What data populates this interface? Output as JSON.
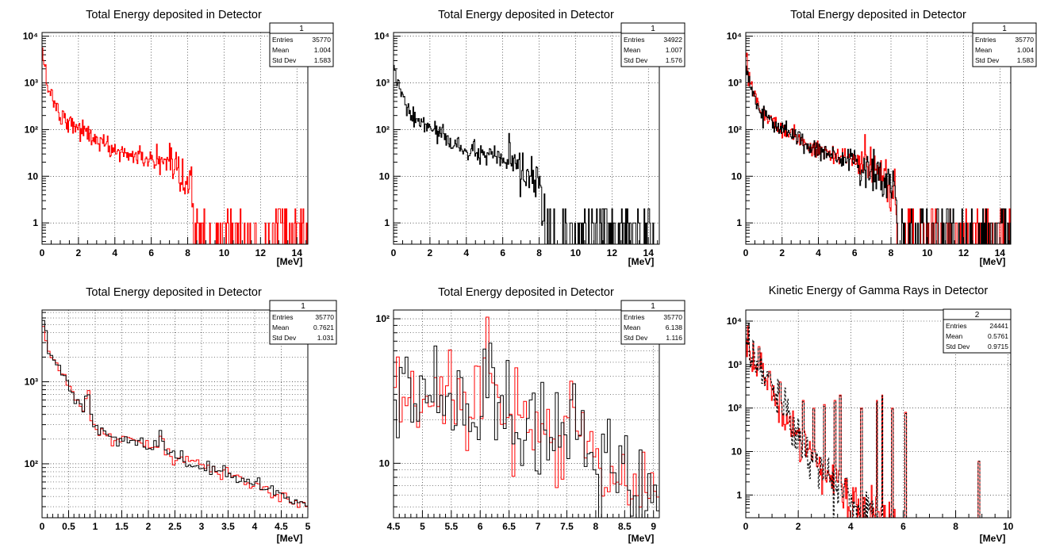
{
  "colors": {
    "series_a": "#ff0000",
    "series_b": "#000000",
    "grid": "#000000",
    "frame": "#000000"
  },
  "chart_data": [
    {
      "type": "line",
      "title": "Total Energy deposited in Detector",
      "xlabel": "[MeV]",
      "xlim": [
        0,
        14.6
      ],
      "ylim": [
        0.35,
        12000
      ],
      "ylog": true,
      "grid": true,
      "xticks": [
        "0",
        "2",
        "4",
        "6",
        "8",
        "10",
        "12",
        "14"
      ],
      "xtick_values": [
        0,
        2,
        4,
        6,
        8,
        10,
        12,
        14
      ],
      "yticks": [
        "1",
        "10",
        "10²",
        "10³",
        "10⁴"
      ],
      "ytick_values": [
        1,
        10,
        100,
        1000,
        10000
      ],
      "legend": "top-right",
      "stats": {
        "name": "1",
        "rows": [
          {
            "label": "Entries",
            "value": "35770"
          },
          {
            "label": "Mean",
            "value": "1.004"
          },
          {
            "label": "Std Dev",
            "value": "1.583"
          }
        ]
      },
      "series": [
        {
          "color": "red",
          "style": "solid",
          "model": "full_spectrum",
          "x": [
            0,
            0.3,
            1,
            2,
            3,
            4,
            5,
            6,
            7,
            8,
            8.5,
            9,
            10,
            11,
            12,
            13,
            14,
            14.6
          ],
          "y": [
            5000,
            900,
            200,
            110,
            60,
            35,
            28,
            22,
            14,
            6,
            2.5,
            1.5,
            1,
            1,
            1,
            1,
            1,
            1
          ]
        }
      ]
    },
    {
      "type": "line",
      "title": "Total Energy deposited in Detector",
      "xlabel": "[MeV]",
      "xlim": [
        0,
        14.6
      ],
      "ylim": [
        0.35,
        12000
      ],
      "ylog": true,
      "grid": true,
      "xticks": [
        "0",
        "2",
        "4",
        "6",
        "8",
        "10",
        "12",
        "14"
      ],
      "xtick_values": [
        0,
        2,
        4,
        6,
        8,
        10,
        12,
        14
      ],
      "yticks": [
        "1",
        "10",
        "10²",
        "10³",
        "10⁴"
      ],
      "ytick_values": [
        1,
        10,
        100,
        1000,
        10000
      ],
      "legend": "top-right",
      "stats": {
        "name": "1",
        "rows": [
          {
            "label": "Entries",
            "value": "34922"
          },
          {
            "label": "Mean",
            "value": "1.007"
          },
          {
            "label": "Std Dev",
            "value": "1.576"
          }
        ]
      },
      "series": [
        {
          "color": "black",
          "style": "solid",
          "model": "full_spectrum",
          "x": [
            0,
            0.3,
            1,
            2,
            3,
            4,
            5,
            6,
            7,
            8,
            8.5,
            9,
            10,
            11,
            12,
            13,
            14,
            14.6
          ],
          "y": [
            2500,
            700,
            180,
            110,
            60,
            35,
            28,
            22,
            14,
            6,
            2.5,
            1.5,
            1,
            1,
            1,
            1,
            1,
            1
          ]
        }
      ]
    },
    {
      "type": "line",
      "title": "Total Energy deposited in Detector",
      "xlabel": "[MeV]",
      "xlim": [
        0,
        14.6
      ],
      "ylim": [
        0.35,
        12000
      ],
      "ylog": true,
      "grid": true,
      "xticks": [
        "0",
        "2",
        "4",
        "6",
        "8",
        "10",
        "12",
        "14"
      ],
      "xtick_values": [
        0,
        2,
        4,
        6,
        8,
        10,
        12,
        14
      ],
      "yticks": [
        "1",
        "10",
        "10²",
        "10³",
        "10⁴"
      ],
      "ytick_values": [
        1,
        10,
        100,
        1000,
        10000
      ],
      "legend": "top-right",
      "stats": {
        "name": "1",
        "rows": [
          {
            "label": "Entries",
            "value": "35770"
          },
          {
            "label": "Mean",
            "value": "1.004"
          },
          {
            "label": "Std Dev",
            "value": "1.583"
          }
        ]
      },
      "series": [
        {
          "color": "red",
          "style": "solid",
          "model": "full_spectrum",
          "x": [
            0,
            0.3,
            1,
            2,
            3,
            4,
            5,
            6,
            7,
            8,
            8.5,
            9,
            10,
            11,
            12,
            13,
            14,
            14.6
          ],
          "y": [
            5000,
            900,
            200,
            110,
            60,
            35,
            28,
            22,
            14,
            6,
            2.5,
            1.5,
            1,
            1,
            1,
            1,
            1,
            1
          ]
        },
        {
          "color": "black",
          "style": "solid",
          "model": "full_spectrum",
          "x": [
            0,
            0.3,
            1,
            2,
            3,
            4,
            5,
            6,
            7,
            8,
            8.5,
            9,
            10,
            11,
            12,
            13,
            14,
            14.6
          ],
          "y": [
            2500,
            700,
            180,
            110,
            60,
            35,
            28,
            22,
            14,
            6,
            2.5,
            1.5,
            1,
            1,
            1,
            1,
            1,
            1
          ]
        }
      ]
    },
    {
      "type": "line",
      "title": "Total Energy deposited in Detector",
      "xlabel": "[MeV]",
      "xlim": [
        0,
        5
      ],
      "ylim": [
        22,
        7500
      ],
      "ylog": true,
      "grid": true,
      "xticks": [
        "0",
        "0.5",
        "1",
        "1.5",
        "2",
        "2.5",
        "3",
        "3.5",
        "4",
        "4.5",
        "5"
      ],
      "xtick_values": [
        0,
        0.5,
        1,
        1.5,
        2,
        2.5,
        3,
        3.5,
        4,
        4.5,
        5
      ],
      "yticks": [
        "10²",
        "10³"
      ],
      "ytick_values": [
        100,
        1000
      ],
      "legend": "top-right",
      "stats": {
        "name": "1",
        "rows": [
          {
            "label": "Entries",
            "value": "35770"
          },
          {
            "label": "Mean",
            "value": "0.7621"
          },
          {
            "label": "Std Dev",
            "value": "1.031"
          }
        ]
      },
      "series": [
        {
          "color": "red",
          "style": "solid",
          "model": "zoom_low",
          "x": [
            0.05,
            0.1,
            0.2,
            0.3,
            0.5,
            0.7,
            0.8,
            0.85,
            0.9,
            1,
            1.2,
            1.4,
            1.6,
            1.8,
            2,
            2.2,
            2.25,
            2.3,
            2.5,
            3,
            3.5,
            4,
            4.5,
            5
          ],
          "y": [
            5000,
            2300,
            2000,
            1500,
            900,
            520,
            420,
            850,
            400,
            280,
            230,
            210,
            190,
            185,
            170,
            160,
            290,
            140,
            120,
            95,
            75,
            55,
            40,
            30
          ]
        },
        {
          "color": "black",
          "style": "solid",
          "model": "zoom_low",
          "x": [
            0.05,
            0.1,
            0.2,
            0.3,
            0.5,
            0.7,
            0.8,
            0.85,
            0.9,
            1,
            1.2,
            1.4,
            1.6,
            1.8,
            2,
            2.2,
            2.25,
            2.3,
            2.5,
            3,
            3.5,
            4,
            4.5,
            5
          ],
          "y": [
            6000,
            2500,
            2100,
            1500,
            900,
            520,
            420,
            900,
            400,
            280,
            230,
            210,
            190,
            185,
            170,
            160,
            300,
            140,
            120,
            95,
            75,
            55,
            40,
            30
          ]
        }
      ]
    },
    {
      "type": "line",
      "title": "Total Energy deposited in Detector",
      "xlabel": "[MeV]",
      "xlim": [
        4.5,
        9.1
      ],
      "ylim": [
        4.2,
        115
      ],
      "ylog": true,
      "grid": true,
      "xticks": [
        "4.5",
        "5",
        "5.5",
        "6",
        "6.5",
        "7",
        "7.5",
        "8",
        "8.5",
        "9"
      ],
      "xtick_values": [
        4.5,
        5,
        5.5,
        6,
        6.5,
        7,
        7.5,
        8,
        8.5,
        9
      ],
      "yticks": [
        "10",
        "10²"
      ],
      "ytick_values": [
        10,
        100
      ],
      "legend": "top-right",
      "stats": {
        "name": "1",
        "rows": [
          {
            "label": "Entries",
            "value": "35770"
          },
          {
            "label": "Mean",
            "value": "6.138"
          },
          {
            "label": "Std Dev",
            "value": "1.116"
          }
        ]
      },
      "series": [
        {
          "color": "red",
          "style": "solid",
          "model": "zoom_high",
          "x": [
            4.5,
            5,
            5.5,
            6,
            6.1,
            6.5,
            7,
            7.5,
            7.6,
            8,
            8.5,
            9
          ],
          "y": [
            30,
            28,
            25,
            22,
            45,
            18,
            16,
            14,
            28,
            9,
            7,
            6
          ]
        },
        {
          "color": "black",
          "style": "solid",
          "model": "zoom_high",
          "x": [
            4.5,
            5,
            5.5,
            6,
            6.1,
            6.5,
            7,
            7.5,
            7.6,
            8,
            8.5,
            9
          ],
          "y": [
            32,
            30,
            26,
            23,
            55,
            18,
            16,
            14,
            35,
            9,
            7,
            6
          ]
        }
      ]
    },
    {
      "type": "line",
      "title": "Kinetic Energy of Gamma Rays in Detector",
      "xlabel": "[MeV]",
      "xlim": [
        0,
        10.1
      ],
      "ylim": [
        0.3,
        18000
      ],
      "ylog": true,
      "grid": true,
      "xticks": [
        "0",
        "2",
        "4",
        "6",
        "8",
        "10"
      ],
      "xtick_values": [
        0,
        2,
        4,
        6,
        8,
        10
      ],
      "yticks": [
        "1",
        "10",
        "10²",
        "10³",
        "10⁴"
      ],
      "ytick_values": [
        1,
        10,
        100,
        1000,
        10000
      ],
      "legend": "top-right",
      "stats": {
        "name": "2",
        "rows": [
          {
            "label": "Entries",
            "value": "24441"
          },
          {
            "label": "Mean",
            "value": "0.5761"
          },
          {
            "label": "Std Dev",
            "value": "0.9715"
          }
        ]
      },
      "series": [
        {
          "color": "red",
          "style": "solid",
          "model": "gamma_lines",
          "x": [
            0.1,
            0.5,
            0.9,
            1.3,
            2.2,
            2.6,
            3,
            3.4,
            3.6,
            4.4,
            5,
            5.2,
            5.6,
            6.1,
            8.9
          ],
          "y": [
            3000,
            2600,
            700,
            400,
            150,
            100,
            120,
            150,
            200,
            100,
            150,
            200,
            100,
            80,
            6
          ]
        },
        {
          "color": "black",
          "style": "dashed",
          "model": "gamma_lines",
          "x": [
            0.1,
            0.5,
            0.9,
            1.3,
            2.2,
            2.6,
            3,
            3.4,
            3.6,
            4.4,
            5,
            5.2,
            5.6,
            6.1,
            8.9
          ],
          "y": [
            2800,
            2400,
            650,
            380,
            140,
            95,
            110,
            140,
            190,
            95,
            140,
            190,
            95,
            75,
            6
          ]
        }
      ]
    }
  ]
}
